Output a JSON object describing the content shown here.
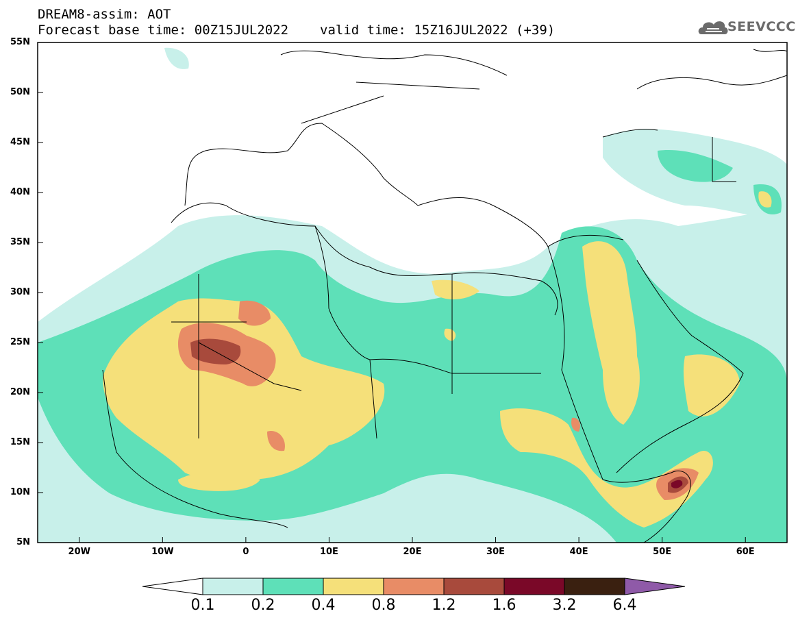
{
  "header": {
    "line1": "DREAM8-assim: AOT",
    "base_time": "Forecast base time: 00Z15JUL2022",
    "valid_time": "valid time: 15Z16JUL2022 (+39)"
  },
  "logo": {
    "text": "SEEVCCC",
    "icon": "cloud-icon",
    "color": "#6b6b6b"
  },
  "map": {
    "lat_labels": [
      "55N",
      "50N",
      "45N",
      "40N",
      "35N",
      "30N",
      "25N",
      "20N",
      "15N",
      "10N",
      "5N"
    ],
    "lon_labels": [
      "20W",
      "10W",
      "0",
      "10E",
      "20E",
      "30E",
      "40E",
      "50E",
      "60E"
    ],
    "lon_range": [
      -25,
      65
    ],
    "lat_range": [
      5,
      55
    ]
  },
  "colorbar": {
    "labels": [
      "0.1",
      "0.2",
      "0.4",
      "0.8",
      "1.2",
      "1.6",
      "3.2",
      "6.4"
    ],
    "colors": [
      "#ffffff",
      "#c8f0ea",
      "#5ee0b8",
      "#f5e07a",
      "#e88c66",
      "#a84a3c",
      "#7a0828",
      "#3a2010",
      "#8f5aa8"
    ]
  }
}
